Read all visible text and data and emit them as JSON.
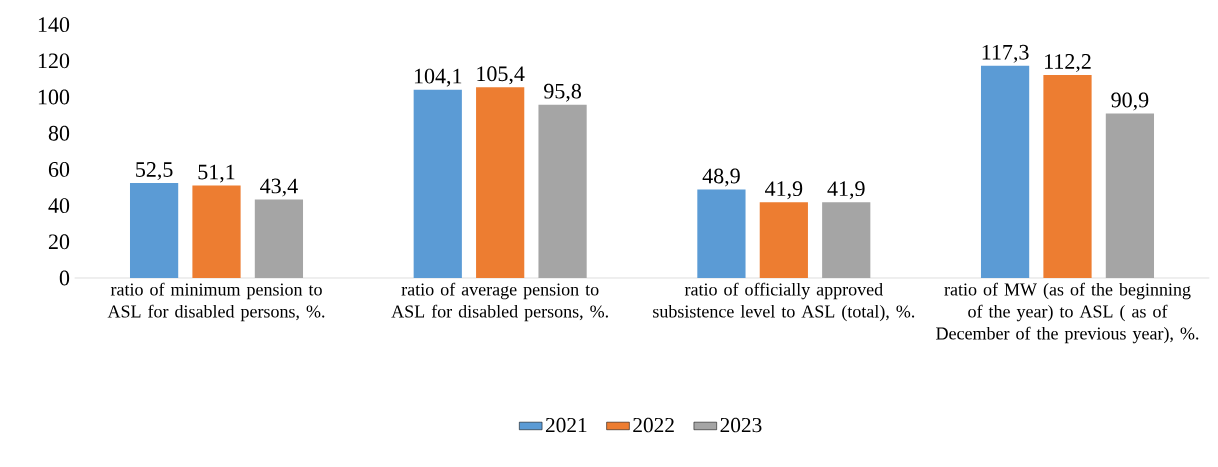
{
  "chart_data": {
    "type": "bar",
    "categories": [
      "ratio of minimum pension to ASL for disabled persons, %.",
      "ratio of average pension to ASL for disabled persons, %.",
      "ratio of officially approved subsistence level to  ASL (total), %.",
      "ratio of MW (as of the beginning of the year) to ASL ( as of December of the previous year), %."
    ],
    "series": [
      {
        "name": "2021",
        "color": "#5b9bd5",
        "values": [
          52.5,
          104.1,
          48.9,
          117.3
        ],
        "value_labels": [
          "52,5",
          "104,1",
          "48,9",
          "117,3"
        ]
      },
      {
        "name": "2022",
        "color": "#ed7d31",
        "values": [
          51.1,
          105.4,
          41.9,
          112.2
        ],
        "value_labels": [
          "51,1",
          "105,4",
          "41,9",
          "112,2"
        ]
      },
      {
        "name": "2023",
        "color": "#a5a5a5",
        "values": [
          43.4,
          95.8,
          41.9,
          90.9
        ],
        "value_labels": [
          "43,4",
          "95,8",
          "41,9",
          "90,9"
        ]
      }
    ],
    "ylim": [
      0,
      140
    ],
    "yticks": [
      0,
      20,
      40,
      60,
      80,
      100,
      120,
      140
    ],
    "legend": "bottom"
  }
}
